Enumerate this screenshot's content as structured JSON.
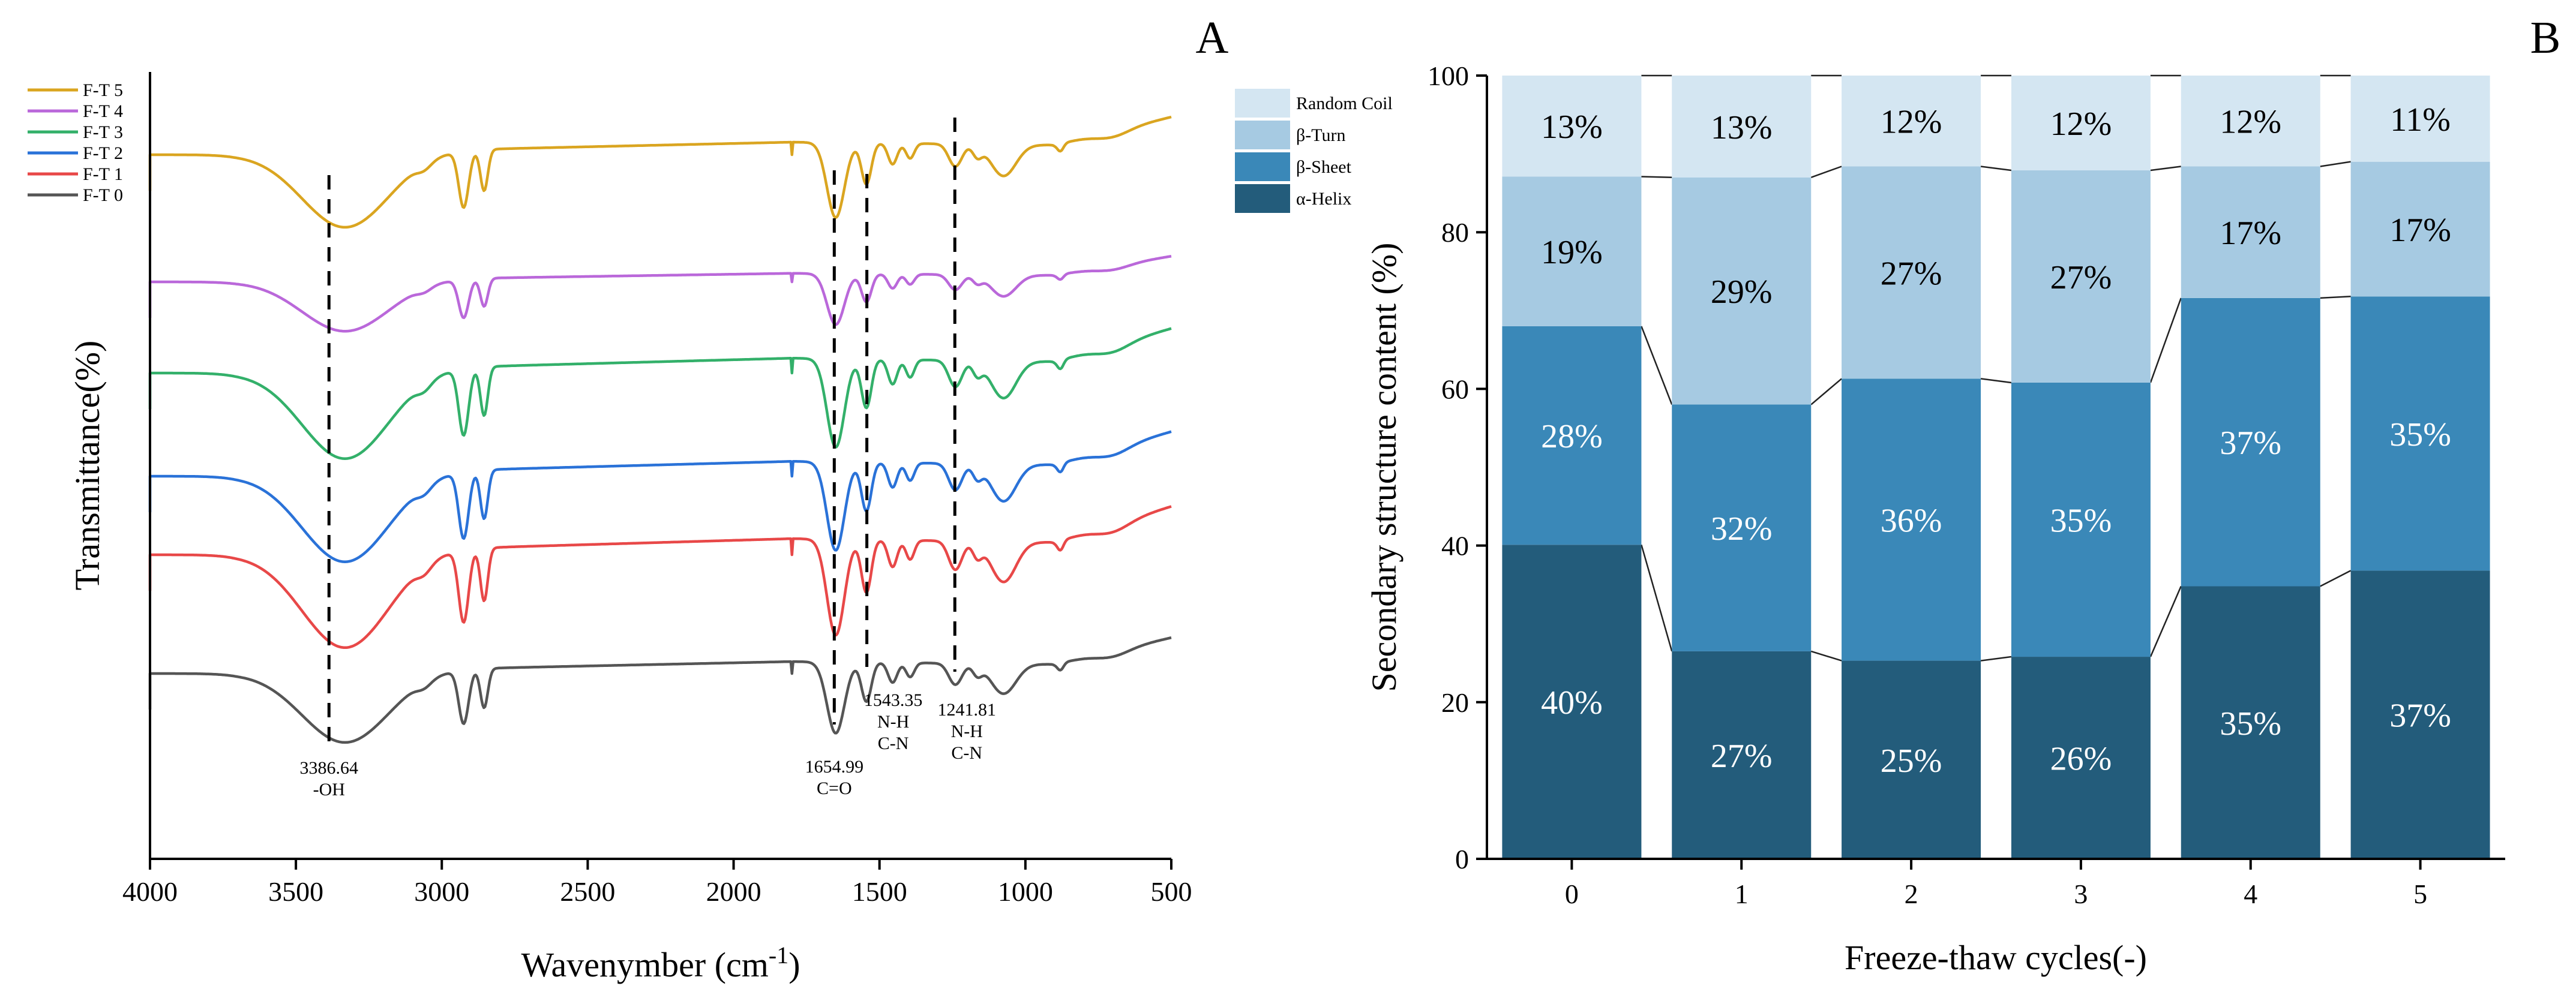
{
  "chart_data": [
    {
      "panel": "A",
      "type": "line",
      "xlabel": "Wavenymber (cm",
      "xlabel_sup": "-1",
      "xlabel_close": ")",
      "ylabel": "Transmittance(%)",
      "xlim": [
        4000,
        500
      ],
      "x_ticks": [
        4000,
        3500,
        3000,
        2500,
        2000,
        1500,
        1000,
        500
      ],
      "x_tick_labels": [
        "4000",
        "3500",
        "3000",
        "2500",
        "2000",
        "1500",
        "1000",
        "500"
      ],
      "legend_position": "top-left",
      "series": [
        {
          "name": "F-T 5",
          "color": "#DAA520",
          "offset": 0.0
        },
        {
          "name": "F-T 4",
          "color": "#BA68DA",
          "offset": 0.2
        },
        {
          "name": "F-T 3",
          "color": "#33B06A",
          "offset": 0.0
        },
        {
          "name": "F-T 2",
          "color": "#2A72D8",
          "offset": 0.2
        },
        {
          "name": "F-T 1",
          "color": "#E84848",
          "offset": 0.1
        },
        {
          "name": "F-T 0",
          "color": "#555555",
          "offset": 0.2
        }
      ],
      "peaks": [
        {
          "x": 3386.64,
          "lines": [
            "3386.64",
            "-OH"
          ]
        },
        {
          "x": 1654.99,
          "lines": [
            "1654.99",
            "C=O"
          ]
        },
        {
          "x": 1543.35,
          "lines": [
            "1543.35",
            "N-H",
            "C-N"
          ]
        },
        {
          "x": 1241.81,
          "lines": [
            "1241.81",
            "N-H",
            "C-N"
          ]
        }
      ]
    },
    {
      "panel": "B",
      "type": "bar",
      "stacked": true,
      "xlabel": "Freeze-thaw cycles(-)",
      "ylabel": "Secondary structure content (%)",
      "ylim": [
        0,
        100
      ],
      "y_ticks": [
        0,
        20,
        40,
        60,
        80,
        100
      ],
      "y_tick_labels": [
        "0",
        "20",
        "40",
        "60",
        "80",
        "100"
      ],
      "categories": [
        "0",
        "1",
        "2",
        "3",
        "4",
        "5"
      ],
      "legend_position": "top-left",
      "series": [
        {
          "name": "α-Helix",
          "color": "#235C7B",
          "label_color": "#ffffff",
          "values": [
            40.1,
            26.5,
            25.3,
            25.8,
            34.8,
            36.8
          ],
          "labels": [
            "40%",
            "27%",
            "25%",
            "26%",
            "35%",
            "37%"
          ]
        },
        {
          "name": "β-Sheet",
          "color": "#3A88B8",
          "label_color": "#ffffff",
          "values": [
            27.9,
            31.5,
            36.0,
            35.0,
            36.8,
            35.0
          ],
          "labels": [
            "28%",
            "32%",
            "36%",
            "35%",
            "37%",
            "35%"
          ]
        },
        {
          "name": "β-Turn",
          "color": "#A6CAE2",
          "label_color": "#000000",
          "values": [
            19.1,
            29.0,
            27.1,
            27.1,
            16.8,
            17.2
          ],
          "labels": [
            "19%",
            "29%",
            "27%",
            "27%",
            "17%",
            "17%"
          ]
        },
        {
          "name": "Random Coil",
          "color": "#D4E6F2",
          "label_color": "#000000",
          "values": [
            12.9,
            13.0,
            11.6,
            12.1,
            11.6,
            11.0
          ],
          "labels": [
            "13%",
            "13%",
            "12%",
            "12%",
            "12%",
            "11%"
          ]
        }
      ]
    }
  ]
}
